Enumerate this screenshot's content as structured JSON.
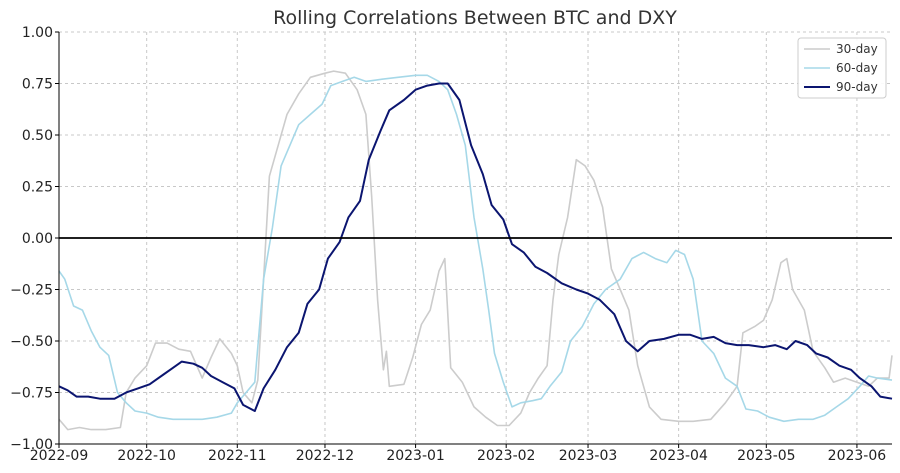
{
  "chart_data": {
    "type": "line",
    "title": "Rolling Correlations Between BTC and DXY",
    "xlabel": "",
    "ylabel": "",
    "x_tick_labels": [
      "2022-09",
      "2022-10",
      "2022-11",
      "2022-12",
      "2023-01",
      "2023-02",
      "2023-03",
      "2023-04",
      "2023-05",
      "2023-06"
    ],
    "x_tick_dates": [
      "2022-09-01",
      "2022-10-01",
      "2022-11-01",
      "2022-12-01",
      "2023-01-01",
      "2023-02-01",
      "2023-03-01",
      "2023-04-01",
      "2023-05-01",
      "2023-06-01"
    ],
    "x_range": [
      "2022-09-01",
      "2023-06-13"
    ],
    "y_ticks": [
      -1.0,
      -0.75,
      -0.5,
      -0.25,
      0.0,
      0.25,
      0.5,
      0.75,
      1.0
    ],
    "y_tick_labels": [
      "−1.00",
      "−0.75",
      "−0.50",
      "−0.25",
      "0.00",
      "0.25",
      "0.50",
      "0.75",
      "1.00"
    ],
    "ylim": [
      -1.0,
      1.0
    ],
    "grid": true,
    "zero_line": 0.0,
    "legend_position": "top-right",
    "series": [
      {
        "name": "30-day",
        "color": "#cccccc",
        "points": [
          [
            "2022-09-01",
            -0.88
          ],
          [
            "2022-09-04",
            -0.93
          ],
          [
            "2022-09-08",
            -0.92
          ],
          [
            "2022-09-12",
            -0.93
          ],
          [
            "2022-09-17",
            -0.93
          ],
          [
            "2022-09-22",
            -0.92
          ],
          [
            "2022-09-24",
            -0.75
          ],
          [
            "2022-09-27",
            -0.68
          ],
          [
            "2022-10-01",
            -0.62
          ],
          [
            "2022-10-04",
            -0.51
          ],
          [
            "2022-10-08",
            -0.51
          ],
          [
            "2022-10-12",
            -0.54
          ],
          [
            "2022-10-16",
            -0.55
          ],
          [
            "2022-10-20",
            -0.68
          ],
          [
            "2022-10-23",
            -0.58
          ],
          [
            "2022-10-26",
            -0.49
          ],
          [
            "2022-10-30",
            -0.56
          ],
          [
            "2022-11-01",
            -0.62
          ],
          [
            "2022-11-03",
            -0.75
          ],
          [
            "2022-11-06",
            -0.8
          ],
          [
            "2022-11-08",
            -0.69
          ],
          [
            "2022-11-10",
            -0.2
          ],
          [
            "2022-11-12",
            0.3
          ],
          [
            "2022-11-15",
            0.45
          ],
          [
            "2022-11-18",
            0.6
          ],
          [
            "2022-11-22",
            0.7
          ],
          [
            "2022-11-26",
            0.78
          ],
          [
            "2022-12-01",
            0.8
          ],
          [
            "2022-12-04",
            0.81
          ],
          [
            "2022-12-08",
            0.8
          ],
          [
            "2022-12-12",
            0.72
          ],
          [
            "2022-12-15",
            0.6
          ],
          [
            "2022-12-17",
            0.2
          ],
          [
            "2022-12-19",
            -0.3
          ],
          [
            "2022-12-21",
            -0.64
          ],
          [
            "2022-12-22",
            -0.55
          ],
          [
            "2022-12-23",
            -0.72
          ],
          [
            "2022-12-28",
            -0.71
          ],
          [
            "2022-12-31",
            -0.58
          ],
          [
            "2023-01-03",
            -0.42
          ],
          [
            "2023-01-06",
            -0.35
          ],
          [
            "2023-01-09",
            -0.16
          ],
          [
            "2023-01-11",
            -0.1
          ],
          [
            "2023-01-13",
            -0.63
          ],
          [
            "2023-01-17",
            -0.7
          ],
          [
            "2023-01-21",
            -0.82
          ],
          [
            "2023-01-25",
            -0.87
          ],
          [
            "2023-01-29",
            -0.91
          ],
          [
            "2023-02-02",
            -0.91
          ],
          [
            "2023-02-06",
            -0.85
          ],
          [
            "2023-02-09",
            -0.75
          ],
          [
            "2023-02-12",
            -0.68
          ],
          [
            "2023-02-15",
            -0.62
          ],
          [
            "2023-02-17",
            -0.3
          ],
          [
            "2023-02-19",
            -0.08
          ],
          [
            "2023-02-22",
            0.1
          ],
          [
            "2023-02-25",
            0.38
          ],
          [
            "2023-02-28",
            0.35
          ],
          [
            "2023-03-03",
            0.28
          ],
          [
            "2023-03-06",
            0.15
          ],
          [
            "2023-03-09",
            -0.15
          ],
          [
            "2023-03-12",
            -0.25
          ],
          [
            "2023-03-15",
            -0.35
          ],
          [
            "2023-03-18",
            -0.62
          ],
          [
            "2023-03-22",
            -0.82
          ],
          [
            "2023-03-26",
            -0.88
          ],
          [
            "2023-04-01",
            -0.89
          ],
          [
            "2023-04-06",
            -0.89
          ],
          [
            "2023-04-12",
            -0.88
          ],
          [
            "2023-04-17",
            -0.8
          ],
          [
            "2023-04-21",
            -0.72
          ],
          [
            "2023-04-23",
            -0.46
          ],
          [
            "2023-04-27",
            -0.43
          ],
          [
            "2023-04-30",
            -0.4
          ],
          [
            "2023-05-03",
            -0.3
          ],
          [
            "2023-05-06",
            -0.12
          ],
          [
            "2023-05-08",
            -0.1
          ],
          [
            "2023-05-10",
            -0.25
          ],
          [
            "2023-05-14",
            -0.35
          ],
          [
            "2023-05-17",
            -0.55
          ],
          [
            "2023-05-21",
            -0.63
          ],
          [
            "2023-05-24",
            -0.7
          ],
          [
            "2023-05-28",
            -0.68
          ],
          [
            "2023-06-01",
            -0.7
          ],
          [
            "2023-06-05",
            -0.72
          ],
          [
            "2023-06-08",
            -0.68
          ],
          [
            "2023-06-12",
            -0.68
          ],
          [
            "2023-06-13",
            -0.57
          ]
        ]
      },
      {
        "name": "60-day",
        "color": "#a6d8e8",
        "points": [
          [
            "2022-09-01",
            -0.16
          ],
          [
            "2022-09-03",
            -0.2
          ],
          [
            "2022-09-06",
            -0.33
          ],
          [
            "2022-09-09",
            -0.35
          ],
          [
            "2022-09-12",
            -0.45
          ],
          [
            "2022-09-15",
            -0.53
          ],
          [
            "2022-09-18",
            -0.57
          ],
          [
            "2022-09-21",
            -0.75
          ],
          [
            "2022-09-24",
            -0.8
          ],
          [
            "2022-09-27",
            -0.84
          ],
          [
            "2022-10-01",
            -0.85
          ],
          [
            "2022-10-05",
            -0.87
          ],
          [
            "2022-10-10",
            -0.88
          ],
          [
            "2022-10-15",
            -0.88
          ],
          [
            "2022-10-20",
            -0.88
          ],
          [
            "2022-10-25",
            -0.87
          ],
          [
            "2022-10-30",
            -0.85
          ],
          [
            "2022-11-01",
            -0.8
          ],
          [
            "2022-11-04",
            -0.75
          ],
          [
            "2022-11-07",
            -0.7
          ],
          [
            "2022-11-10",
            -0.2
          ],
          [
            "2022-11-13",
            0.05
          ],
          [
            "2022-11-16",
            0.35
          ],
          [
            "2022-11-19",
            0.45
          ],
          [
            "2022-11-22",
            0.55
          ],
          [
            "2022-11-26",
            0.6
          ],
          [
            "2022-11-30",
            0.65
          ],
          [
            "2022-12-03",
            0.74
          ],
          [
            "2022-12-07",
            0.76
          ],
          [
            "2022-12-11",
            0.78
          ],
          [
            "2022-12-15",
            0.76
          ],
          [
            "2022-12-20",
            0.77
          ],
          [
            "2022-12-26",
            0.78
          ],
          [
            "2023-01-01",
            0.79
          ],
          [
            "2023-01-05",
            0.79
          ],
          [
            "2023-01-09",
            0.76
          ],
          [
            "2023-01-12",
            0.72
          ],
          [
            "2023-01-15",
            0.6
          ],
          [
            "2023-01-18",
            0.45
          ],
          [
            "2023-01-21",
            0.1
          ],
          [
            "2023-01-24",
            -0.15
          ],
          [
            "2023-01-26",
            -0.35
          ],
          [
            "2023-01-28",
            -0.56
          ],
          [
            "2023-01-31",
            -0.7
          ],
          [
            "2023-02-03",
            -0.82
          ],
          [
            "2023-02-06",
            -0.8
          ],
          [
            "2023-02-10",
            -0.79
          ],
          [
            "2023-02-13",
            -0.78
          ],
          [
            "2023-02-16",
            -0.72
          ],
          [
            "2023-02-20",
            -0.65
          ],
          [
            "2023-02-23",
            -0.5
          ],
          [
            "2023-02-27",
            -0.43
          ],
          [
            "2023-03-03",
            -0.32
          ],
          [
            "2023-03-07",
            -0.25
          ],
          [
            "2023-03-12",
            -0.2
          ],
          [
            "2023-03-16",
            -0.1
          ],
          [
            "2023-03-20",
            -0.07
          ],
          [
            "2023-03-24",
            -0.1
          ],
          [
            "2023-03-28",
            -0.12
          ],
          [
            "2023-03-31",
            -0.06
          ],
          [
            "2023-04-03",
            -0.08
          ],
          [
            "2023-04-06",
            -0.2
          ],
          [
            "2023-04-09",
            -0.5
          ],
          [
            "2023-04-13",
            -0.56
          ],
          [
            "2023-04-17",
            -0.68
          ],
          [
            "2023-04-21",
            -0.72
          ],
          [
            "2023-04-24",
            -0.83
          ],
          [
            "2023-04-28",
            -0.84
          ],
          [
            "2023-05-02",
            -0.87
          ],
          [
            "2023-05-07",
            -0.89
          ],
          [
            "2023-05-12",
            -0.88
          ],
          [
            "2023-05-17",
            -0.88
          ],
          [
            "2023-05-21",
            -0.86
          ],
          [
            "2023-05-25",
            -0.82
          ],
          [
            "2023-05-29",
            -0.78
          ],
          [
            "2023-06-02",
            -0.72
          ],
          [
            "2023-06-05",
            -0.67
          ],
          [
            "2023-06-08",
            -0.68
          ],
          [
            "2023-06-13",
            -0.69
          ]
        ]
      },
      {
        "name": "90-day",
        "color": "#0b1570",
        "points": [
          [
            "2022-09-01",
            -0.72
          ],
          [
            "2022-09-04",
            -0.74
          ],
          [
            "2022-09-07",
            -0.77
          ],
          [
            "2022-09-11",
            -0.77
          ],
          [
            "2022-09-15",
            -0.78
          ],
          [
            "2022-09-20",
            -0.78
          ],
          [
            "2022-09-24",
            -0.75
          ],
          [
            "2022-09-28",
            -0.73
          ],
          [
            "2022-10-02",
            -0.71
          ],
          [
            "2022-10-07",
            -0.66
          ],
          [
            "2022-10-10",
            -0.63
          ],
          [
            "2022-10-13",
            -0.6
          ],
          [
            "2022-10-17",
            -0.61
          ],
          [
            "2022-10-20",
            -0.63
          ],
          [
            "2022-10-23",
            -0.67
          ],
          [
            "2022-10-27",
            -0.7
          ],
          [
            "2022-10-31",
            -0.73
          ],
          [
            "2022-11-03",
            -0.81
          ],
          [
            "2022-11-07",
            -0.84
          ],
          [
            "2022-11-10",
            -0.73
          ],
          [
            "2022-11-14",
            -0.64
          ],
          [
            "2022-11-18",
            -0.53
          ],
          [
            "2022-11-22",
            -0.46
          ],
          [
            "2022-11-25",
            -0.32
          ],
          [
            "2022-11-29",
            -0.25
          ],
          [
            "2022-12-02",
            -0.1
          ],
          [
            "2022-12-06",
            -0.02
          ],
          [
            "2022-12-09",
            0.1
          ],
          [
            "2022-12-13",
            0.18
          ],
          [
            "2022-12-16",
            0.38
          ],
          [
            "2022-12-20",
            0.52
          ],
          [
            "2022-12-23",
            0.62
          ],
          [
            "2022-12-28",
            0.67
          ],
          [
            "2023-01-01",
            0.72
          ],
          [
            "2023-01-05",
            0.74
          ],
          [
            "2023-01-09",
            0.75
          ],
          [
            "2023-01-12",
            0.75
          ],
          [
            "2023-01-16",
            0.67
          ],
          [
            "2023-01-20",
            0.45
          ],
          [
            "2023-01-24",
            0.31
          ],
          [
            "2023-01-27",
            0.16
          ],
          [
            "2023-01-31",
            0.09
          ],
          [
            "2023-02-03",
            -0.03
          ],
          [
            "2023-02-07",
            -0.07
          ],
          [
            "2023-02-11",
            -0.14
          ],
          [
            "2023-02-15",
            -0.17
          ],
          [
            "2023-02-20",
            -0.22
          ],
          [
            "2023-02-25",
            -0.25
          ],
          [
            "2023-03-01",
            -0.27
          ],
          [
            "2023-03-05",
            -0.3
          ],
          [
            "2023-03-10",
            -0.37
          ],
          [
            "2023-03-14",
            -0.5
          ],
          [
            "2023-03-18",
            -0.55
          ],
          [
            "2023-03-22",
            -0.5
          ],
          [
            "2023-03-27",
            -0.49
          ],
          [
            "2023-04-01",
            -0.47
          ],
          [
            "2023-04-05",
            -0.47
          ],
          [
            "2023-04-09",
            -0.49
          ],
          [
            "2023-04-13",
            -0.48
          ],
          [
            "2023-04-17",
            -0.51
          ],
          [
            "2023-04-21",
            -0.52
          ],
          [
            "2023-04-25",
            -0.52
          ],
          [
            "2023-04-30",
            -0.53
          ],
          [
            "2023-05-04",
            -0.52
          ],
          [
            "2023-05-08",
            -0.54
          ],
          [
            "2023-05-11",
            -0.5
          ],
          [
            "2023-05-15",
            -0.52
          ],
          [
            "2023-05-18",
            -0.56
          ],
          [
            "2023-05-22",
            -0.58
          ],
          [
            "2023-05-26",
            -0.62
          ],
          [
            "2023-05-30",
            -0.64
          ],
          [
            "2023-06-02",
            -0.68
          ],
          [
            "2023-06-06",
            -0.72
          ],
          [
            "2023-06-09",
            -0.77
          ],
          [
            "2023-06-13",
            -0.78
          ]
        ]
      }
    ]
  }
}
